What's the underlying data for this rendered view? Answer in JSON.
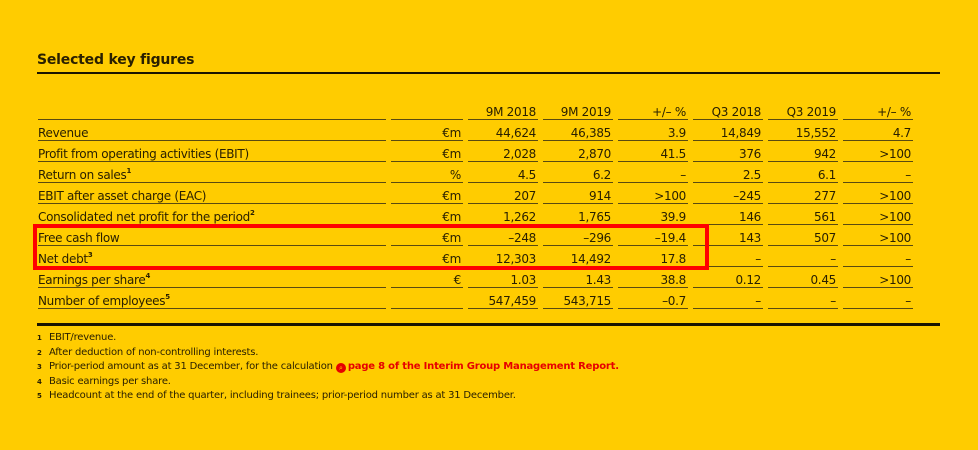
{
  "title": "Selected key figures",
  "columns": [
    "",
    "",
    "9M 2018",
    "9M 2019",
    "+/– %",
    "Q3 2018",
    "Q3 2019",
    "+/– %"
  ],
  "rows": [
    {
      "label": "Revenue",
      "sup": "",
      "unit": "€m",
      "values": [
        "44,624",
        "46,385",
        "3.9",
        "14,849",
        "15,552",
        "4.7"
      ]
    },
    {
      "label": "Profit from operating activities (EBIT)",
      "sup": "",
      "unit": "€m",
      "values": [
        "2,028",
        "2,870",
        "41.5",
        "376",
        "942",
        ">100"
      ]
    },
    {
      "label": "Return on sales",
      "sup": "1",
      "unit": "%",
      "values": [
        "4.5",
        "6.2",
        "–",
        "2.5",
        "6.1",
        "–"
      ]
    },
    {
      "label": "EBIT after asset charge (EAC)",
      "sup": "",
      "unit": "€m",
      "values": [
        "207",
        "914",
        ">100",
        "–245",
        "277",
        ">100"
      ]
    },
    {
      "label": "Consolidated net profit for the period",
      "sup": "2",
      "unit": "€m",
      "values": [
        "1,262",
        "1,765",
        "39.9",
        "146",
        "561",
        ">100"
      ]
    },
    {
      "label": "Free cash flow",
      "sup": "",
      "unit": "€m",
      "values": [
        "–248",
        "–296",
        "–19.4",
        "143",
        "507",
        ">100"
      ]
    },
    {
      "label": "Net debt",
      "sup": "3",
      "unit": "€m",
      "values": [
        "12,303",
        "14,492",
        "17.8",
        "–",
        "–",
        "–"
      ]
    },
    {
      "label": "Earnings per share",
      "sup": "4",
      "unit": "€",
      "values": [
        "1.03",
        "1.43",
        "38.8",
        "0.12",
        "0.45",
        ">100"
      ]
    },
    {
      "label": "Number of employees",
      "sup": "5",
      "unit": "",
      "values": [
        "547,459",
        "543,715",
        "–0.7",
        "–",
        "–",
        "–"
      ]
    }
  ],
  "highlight_color": "#FF0000",
  "background_color": "#FFCC00",
  "footnotes": [
    {
      "num": "1",
      "text": "EBIT/revenue."
    },
    {
      "num": "2",
      "text": "After deduction of non-controlling interests."
    },
    {
      "num": "3",
      "text": "Prior-period amount as at 31 December, for the calculation ",
      "link_icon": "search-link-icon",
      "link": "page 8 of the Interim Group Management Report."
    },
    {
      "num": "4",
      "text": "Basic earnings per share."
    },
    {
      "num": "5",
      "text": "Headcount at the end of the quarter, including trainees; prior-period number as at 31 December."
    }
  ]
}
